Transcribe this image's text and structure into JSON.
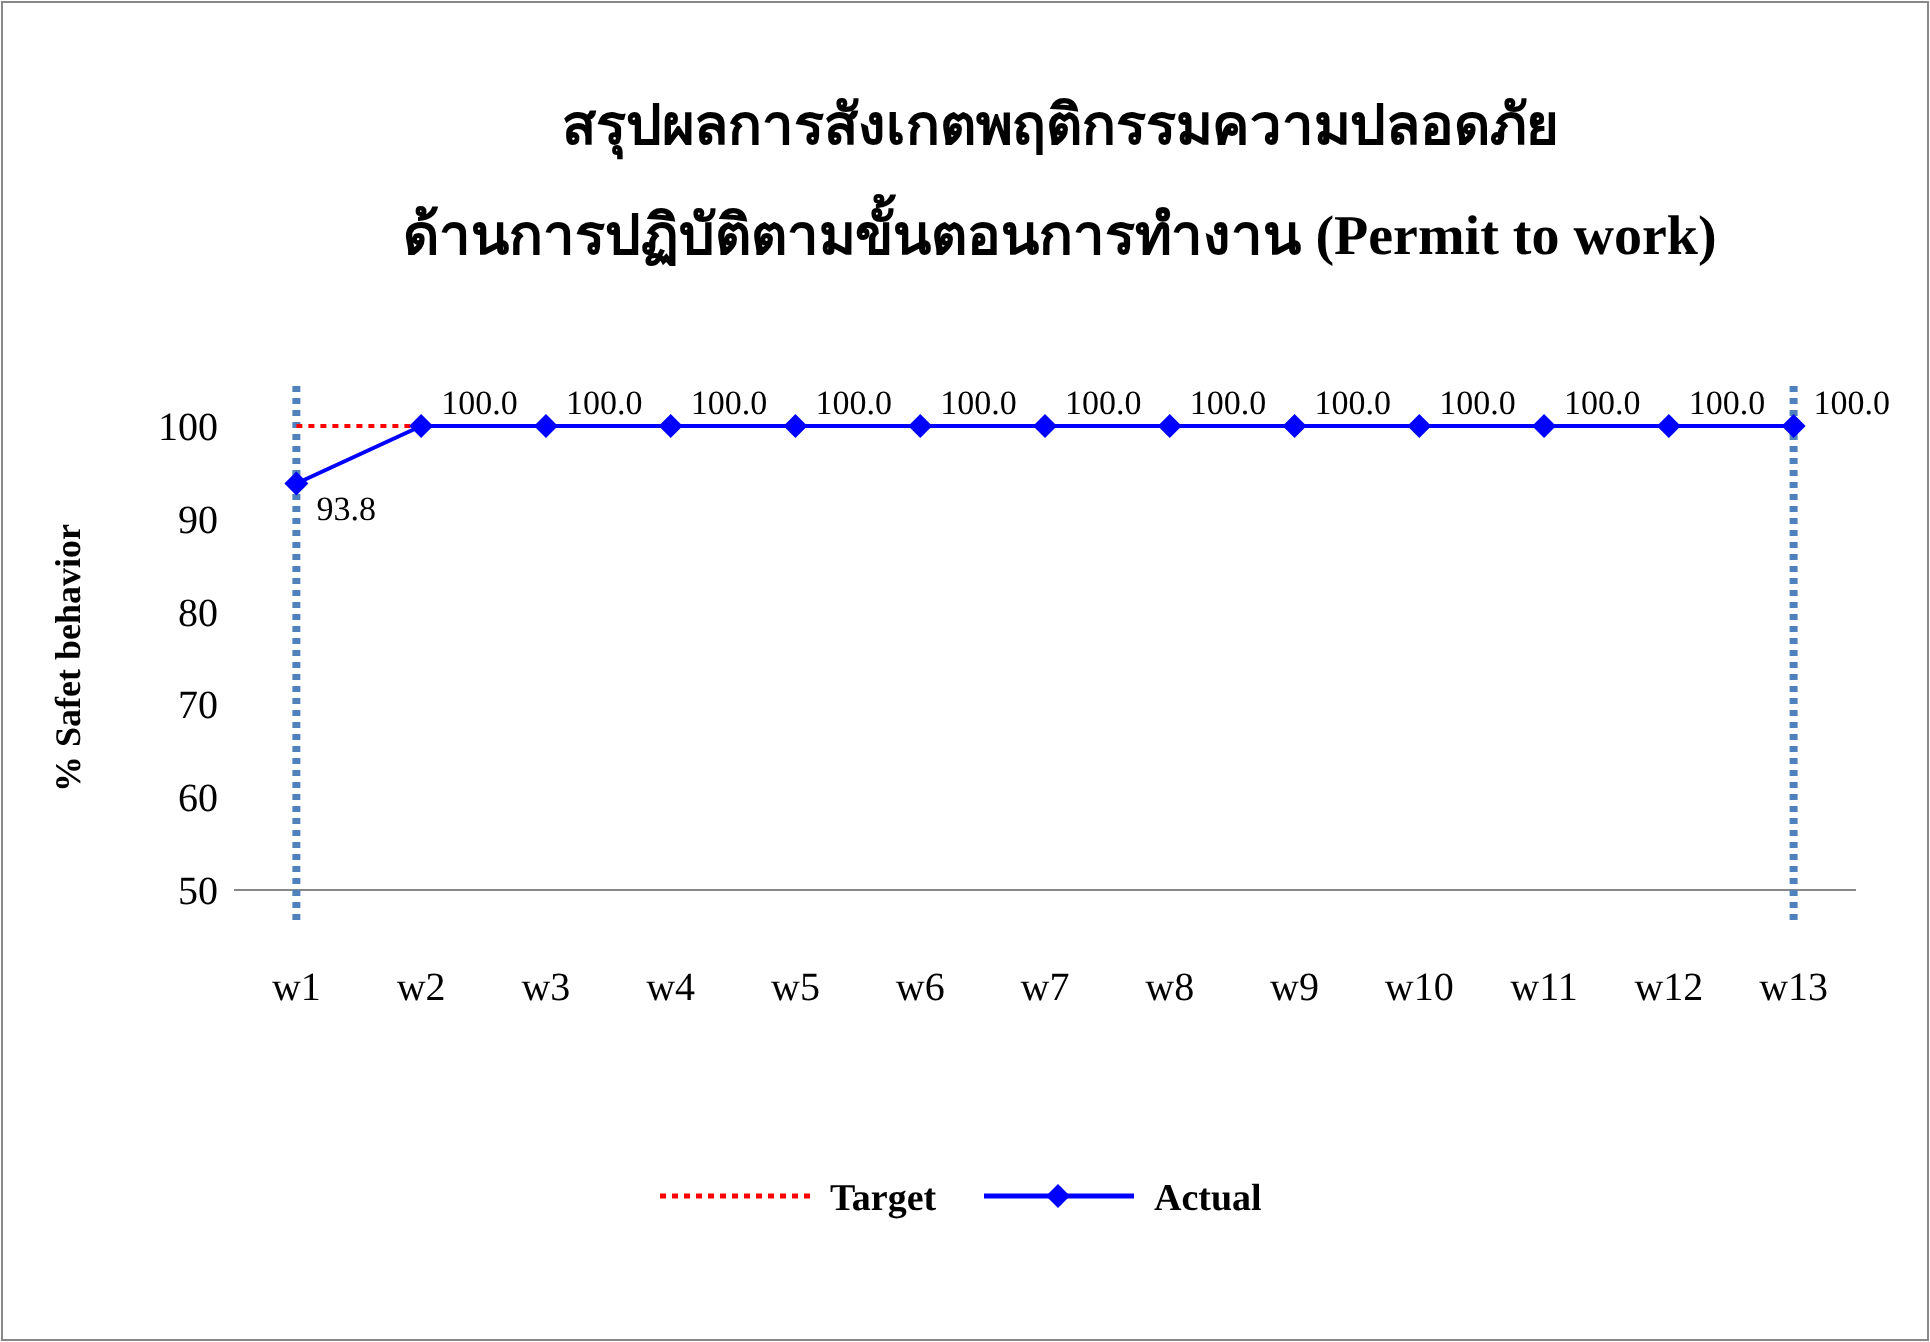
{
  "chart_data": {
    "type": "line",
    "title": "สรุปผลการสังเกตพฤติกรรมความปลอดภัย\nด้านการปฏิบัติตามขั้นตอนการทำงาน (Permit to work)",
    "ylabel": "% Safet behavior",
    "categories": [
      "w1",
      "w2",
      "w3",
      "w4",
      "w5",
      "w6",
      "w7",
      "w8",
      "w9",
      "w10",
      "w11",
      "w12",
      "w13"
    ],
    "series": [
      {
        "name": "Target",
        "color": "#ff0000",
        "line_style": "dotted",
        "marker": "none",
        "values": [
          100,
          100,
          null,
          null,
          null,
          null,
          null,
          null,
          null,
          null,
          null,
          null,
          null
        ]
      },
      {
        "name": "Actual",
        "color": "#0000ff",
        "line_style": "solid",
        "marker": "diamond",
        "values": [
          93.8,
          100,
          100,
          100,
          100,
          100,
          100,
          100,
          100,
          100,
          100,
          100,
          100
        ],
        "value_labels": [
          "93.8",
          "100.0",
          "100.0",
          "100.0",
          "100.0",
          "100.0",
          "100.0",
          "100.0",
          "100.0",
          "100.0",
          "100.0",
          "100.0",
          "100.0"
        ]
      }
    ],
    "ylim": [
      50,
      100
    ],
    "yticks": [
      50,
      60,
      70,
      80,
      90,
      100
    ],
    "grid": false,
    "legend": "bottom",
    "ref_lines": [
      {
        "axis": "x",
        "value": "w1",
        "color": "#4f81bd",
        "line_style": "dotted"
      },
      {
        "axis": "x",
        "value": "w13",
        "color": "#4f81bd",
        "line_style": "dotted"
      }
    ]
  }
}
